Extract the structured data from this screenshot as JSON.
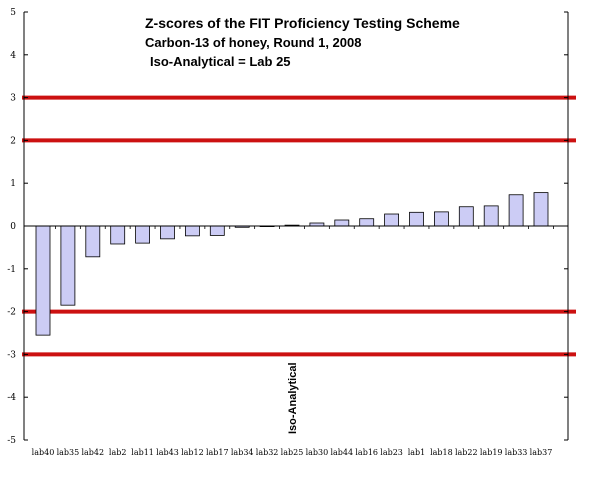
{
  "chart_data": {
    "type": "bar",
    "title": "Z-scores of the FIT Proficiency Testing Scheme",
    "subtitle": "Carbon-13 of honey, Round 1, 2008",
    "note": "Iso-Analytical = Lab 25",
    "xlabel": "",
    "ylabel": "",
    "ylim": [
      -5,
      5
    ],
    "yticks": [
      "5",
      "4",
      "3",
      "2",
      "1",
      "0",
      "-1",
      "-2",
      "-3",
      "-4",
      "-5"
    ],
    "categories": [
      "lab40",
      "lab35",
      "lab42",
      "lab2",
      "lab11",
      "lab43",
      "lab12",
      "lab17",
      "lab34",
      "lab32",
      "lab25",
      "lab30",
      "lab44",
      "lab16",
      "lab23",
      "lab1",
      "lab18",
      "lab22",
      "lab19",
      "lab33",
      "lab37"
    ],
    "values": [
      -2.55,
      -1.85,
      -0.72,
      -0.42,
      -0.4,
      -0.3,
      -0.23,
      -0.22,
      -0.03,
      0.0,
      0.02,
      0.07,
      0.14,
      0.17,
      0.28,
      0.32,
      0.33,
      0.45,
      0.47,
      0.73,
      0.78
    ],
    "reference_lines": [
      3,
      2,
      -2,
      -3
    ],
    "annotation": {
      "text": "Iso-Analytical",
      "category": "lab25"
    },
    "bar_fill": "#ccccf5",
    "bar_stroke": "#000000",
    "line_color": "#cc1111",
    "grid": false,
    "legend": "none"
  }
}
